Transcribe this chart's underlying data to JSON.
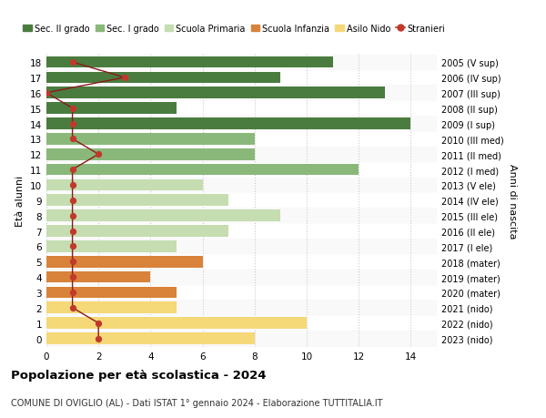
{
  "ages": [
    18,
    17,
    16,
    15,
    14,
    13,
    12,
    11,
    10,
    9,
    8,
    7,
    6,
    5,
    4,
    3,
    2,
    1,
    0
  ],
  "right_labels": [
    "2005 (V sup)",
    "2006 (IV sup)",
    "2007 (III sup)",
    "2008 (II sup)",
    "2009 (I sup)",
    "2010 (III med)",
    "2011 (II med)",
    "2012 (I med)",
    "2013 (V ele)",
    "2014 (IV ele)",
    "2015 (III ele)",
    "2016 (II ele)",
    "2017 (I ele)",
    "2018 (mater)",
    "2019 (mater)",
    "2020 (mater)",
    "2021 (nido)",
    "2022 (nido)",
    "2023 (nido)"
  ],
  "bar_values": [
    11,
    9,
    13,
    5,
    14,
    8,
    8,
    12,
    6,
    7,
    9,
    7,
    5,
    6,
    4,
    5,
    5,
    10,
    8
  ],
  "bar_colors": [
    "#4a7c3f",
    "#4a7c3f",
    "#4a7c3f",
    "#4a7c3f",
    "#4a7c3f",
    "#8ab87a",
    "#8ab87a",
    "#8ab87a",
    "#c5ddb0",
    "#c5ddb0",
    "#c5ddb0",
    "#c5ddb0",
    "#c5ddb0",
    "#d9823a",
    "#d9823a",
    "#d9823a",
    "#f5d878",
    "#f5d878",
    "#f5d878"
  ],
  "stranieri_values": [
    1,
    3,
    0,
    1,
    1,
    1,
    2,
    1,
    1,
    1,
    1,
    1,
    1,
    1,
    1,
    1,
    1,
    2,
    2
  ],
  "legend_labels": [
    "Sec. II grado",
    "Sec. I grado",
    "Scuola Primaria",
    "Scuola Infanzia",
    "Asilo Nido",
    "Stranieri"
  ],
  "legend_colors": [
    "#4a7c3f",
    "#8ab87a",
    "#c5ddb0",
    "#d9823a",
    "#f5d878",
    "#c0392b"
  ],
  "title": "Popolazione per età scolastica - 2024",
  "subtitle": "COMUNE DI OVIGLIO (AL) - Dati ISTAT 1° gennaio 2024 - Elaborazione TUTTITALIA.IT",
  "ylabel_left": "Età alunni",
  "ylabel_right": "Anni di nascita",
  "xlim": [
    0,
    15
  ],
  "xticks": [
    0,
    2,
    4,
    6,
    8,
    10,
    12,
    14
  ],
  "grid_color": "#cccccc",
  "bar_height": 0.75
}
